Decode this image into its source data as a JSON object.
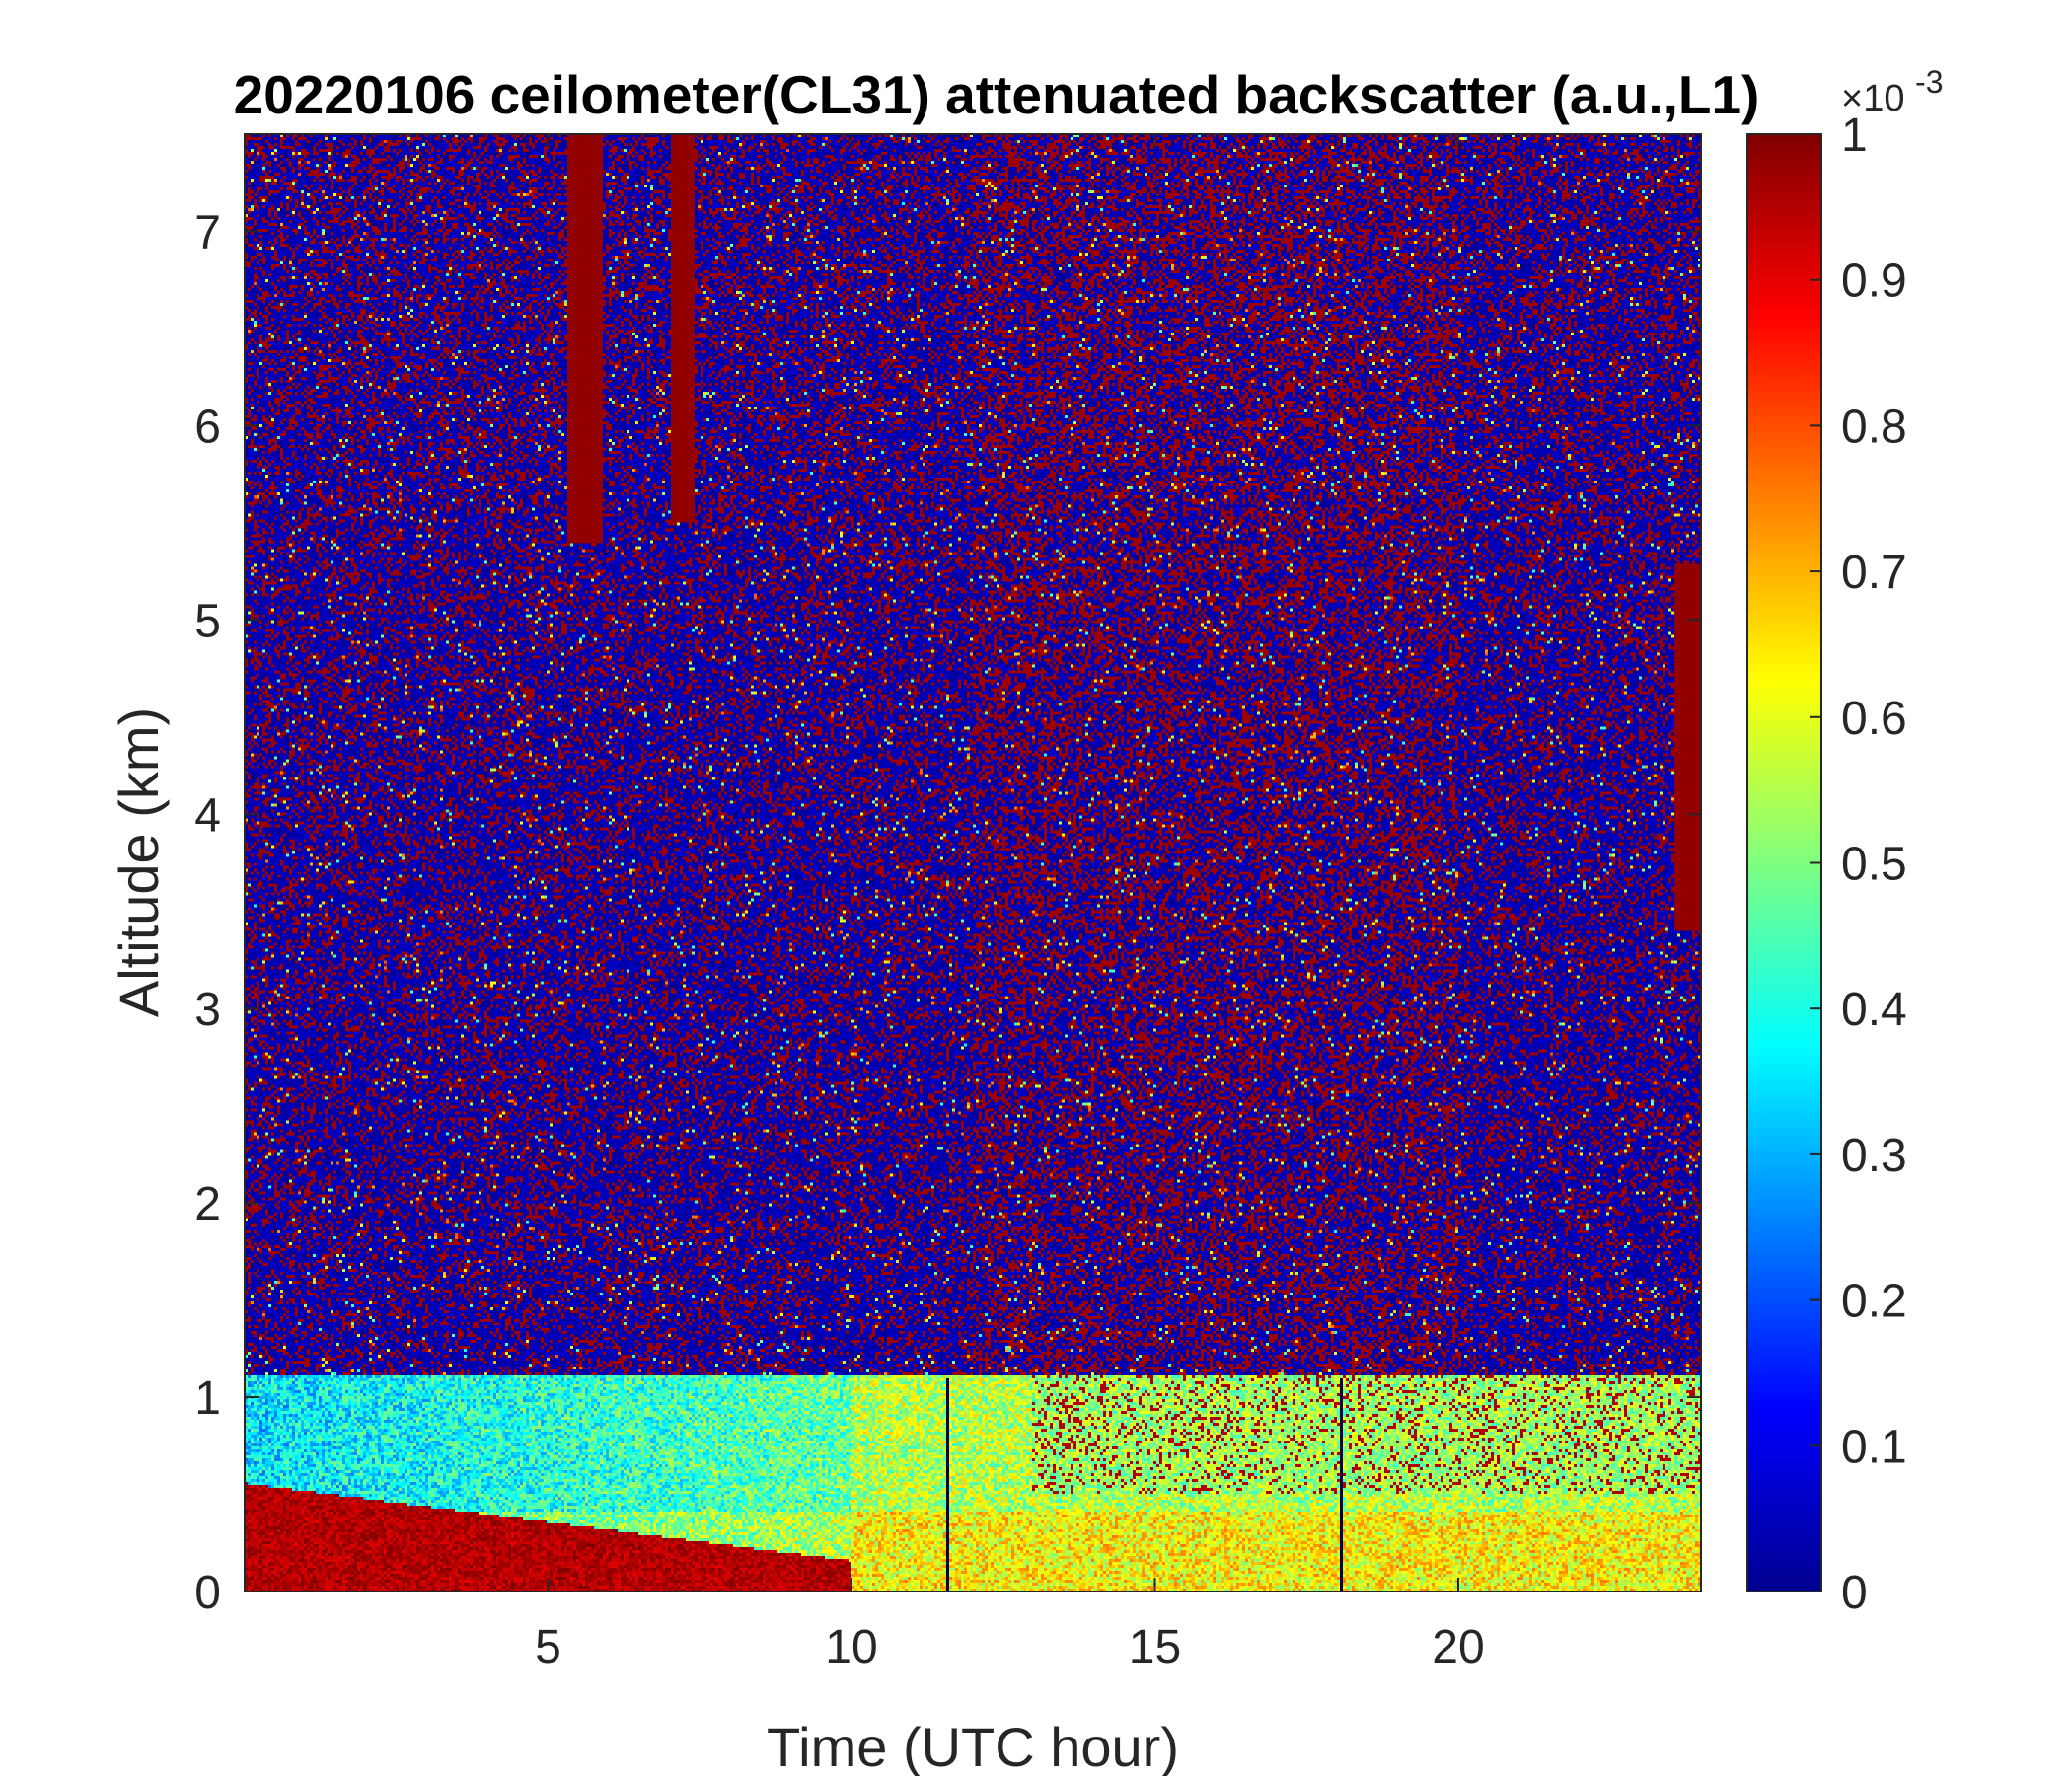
{
  "chart_data": {
    "type": "heatmap",
    "title": "20220106 ceilometer(CL31) attenuated backscatter (a.u.,L1)",
    "xlabel": "Time (UTC hour)",
    "ylabel": "Altitude (km)",
    "xlim": [
      0,
      24
    ],
    "ylim": [
      0,
      7.5
    ],
    "xticks": [
      5,
      10,
      15,
      20
    ],
    "yticks": [
      0,
      1,
      2,
      3,
      4,
      5,
      6,
      7
    ],
    "colorbar": {
      "colormap": "jet",
      "clim": [
        0,
        1
      ],
      "ticks": [
        "0",
        "0.1",
        "0.2",
        "0.3",
        "0.4",
        "0.5",
        "0.6",
        "0.7",
        "0.8",
        "0.9",
        "1"
      ],
      "multiplier_base": "×10",
      "multiplier_exp": "-3"
    },
    "features": {
      "surface_layer_high_backscatter": {
        "x": [
          0,
          10
        ],
        "top_altitude_km": [
          0.55,
          0.15
        ]
      },
      "aerosol_layer_top_km": 1.1,
      "upper_clouds": [
        {
          "x": [
            5.3,
            5.9
          ],
          "altitude_km": [
            5.4,
            7.5
          ]
        },
        {
          "x": [
            7.0,
            7.4
          ],
          "altitude_km": [
            5.5,
            7.5
          ]
        },
        {
          "x": [
            23.6,
            24.0
          ],
          "altitude_km": [
            3.4,
            5.3
          ]
        }
      ],
      "vertical_artifact_lines_hours": [
        11.6,
        18.1
      ]
    }
  }
}
